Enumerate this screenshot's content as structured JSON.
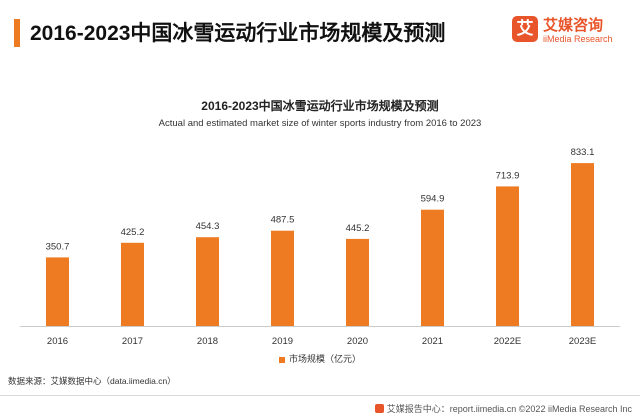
{
  "header": {
    "title": "2016-2023中国冰雪运动行业市场规模及预测",
    "logo_cn": "艾媒咨询",
    "logo_en": "iiMedia Research",
    "logo_mark": "艾"
  },
  "chart_data": {
    "type": "bar",
    "title": "2016-2023中国冰雪运动行业市场规模及预测",
    "subtitle": "Actual and estimated market size of winter sports industry from 2016 to 2023",
    "categories": [
      "2016",
      "2017",
      "2018",
      "2019",
      "2020",
      "2021",
      "2022E",
      "2023E"
    ],
    "series": [
      {
        "name": "市场规模（亿元）",
        "values": [
          350.7,
          425.2,
          454.3,
          487.5,
          445.2,
          594.9,
          713.9,
          833.1
        ]
      }
    ],
    "data_labels": [
      "350.7",
      "425.2",
      "454.3",
      "487.5",
      "445.2",
      "594.9",
      "713.9",
      "833.1"
    ],
    "xlabel": "",
    "ylabel": "",
    "ylim": [
      0,
      900
    ],
    "grid": false,
    "legend": "bottom-center",
    "bar_color": "#ee7b22"
  },
  "legend_label": "市场规模（亿元）",
  "source": "数据来源：艾媒数据中心（data.iimedia.cn）",
  "footer": {
    "text": "艾媒报告中心：report.iimedia.cn ©2022  iiMedia Research Inc"
  }
}
